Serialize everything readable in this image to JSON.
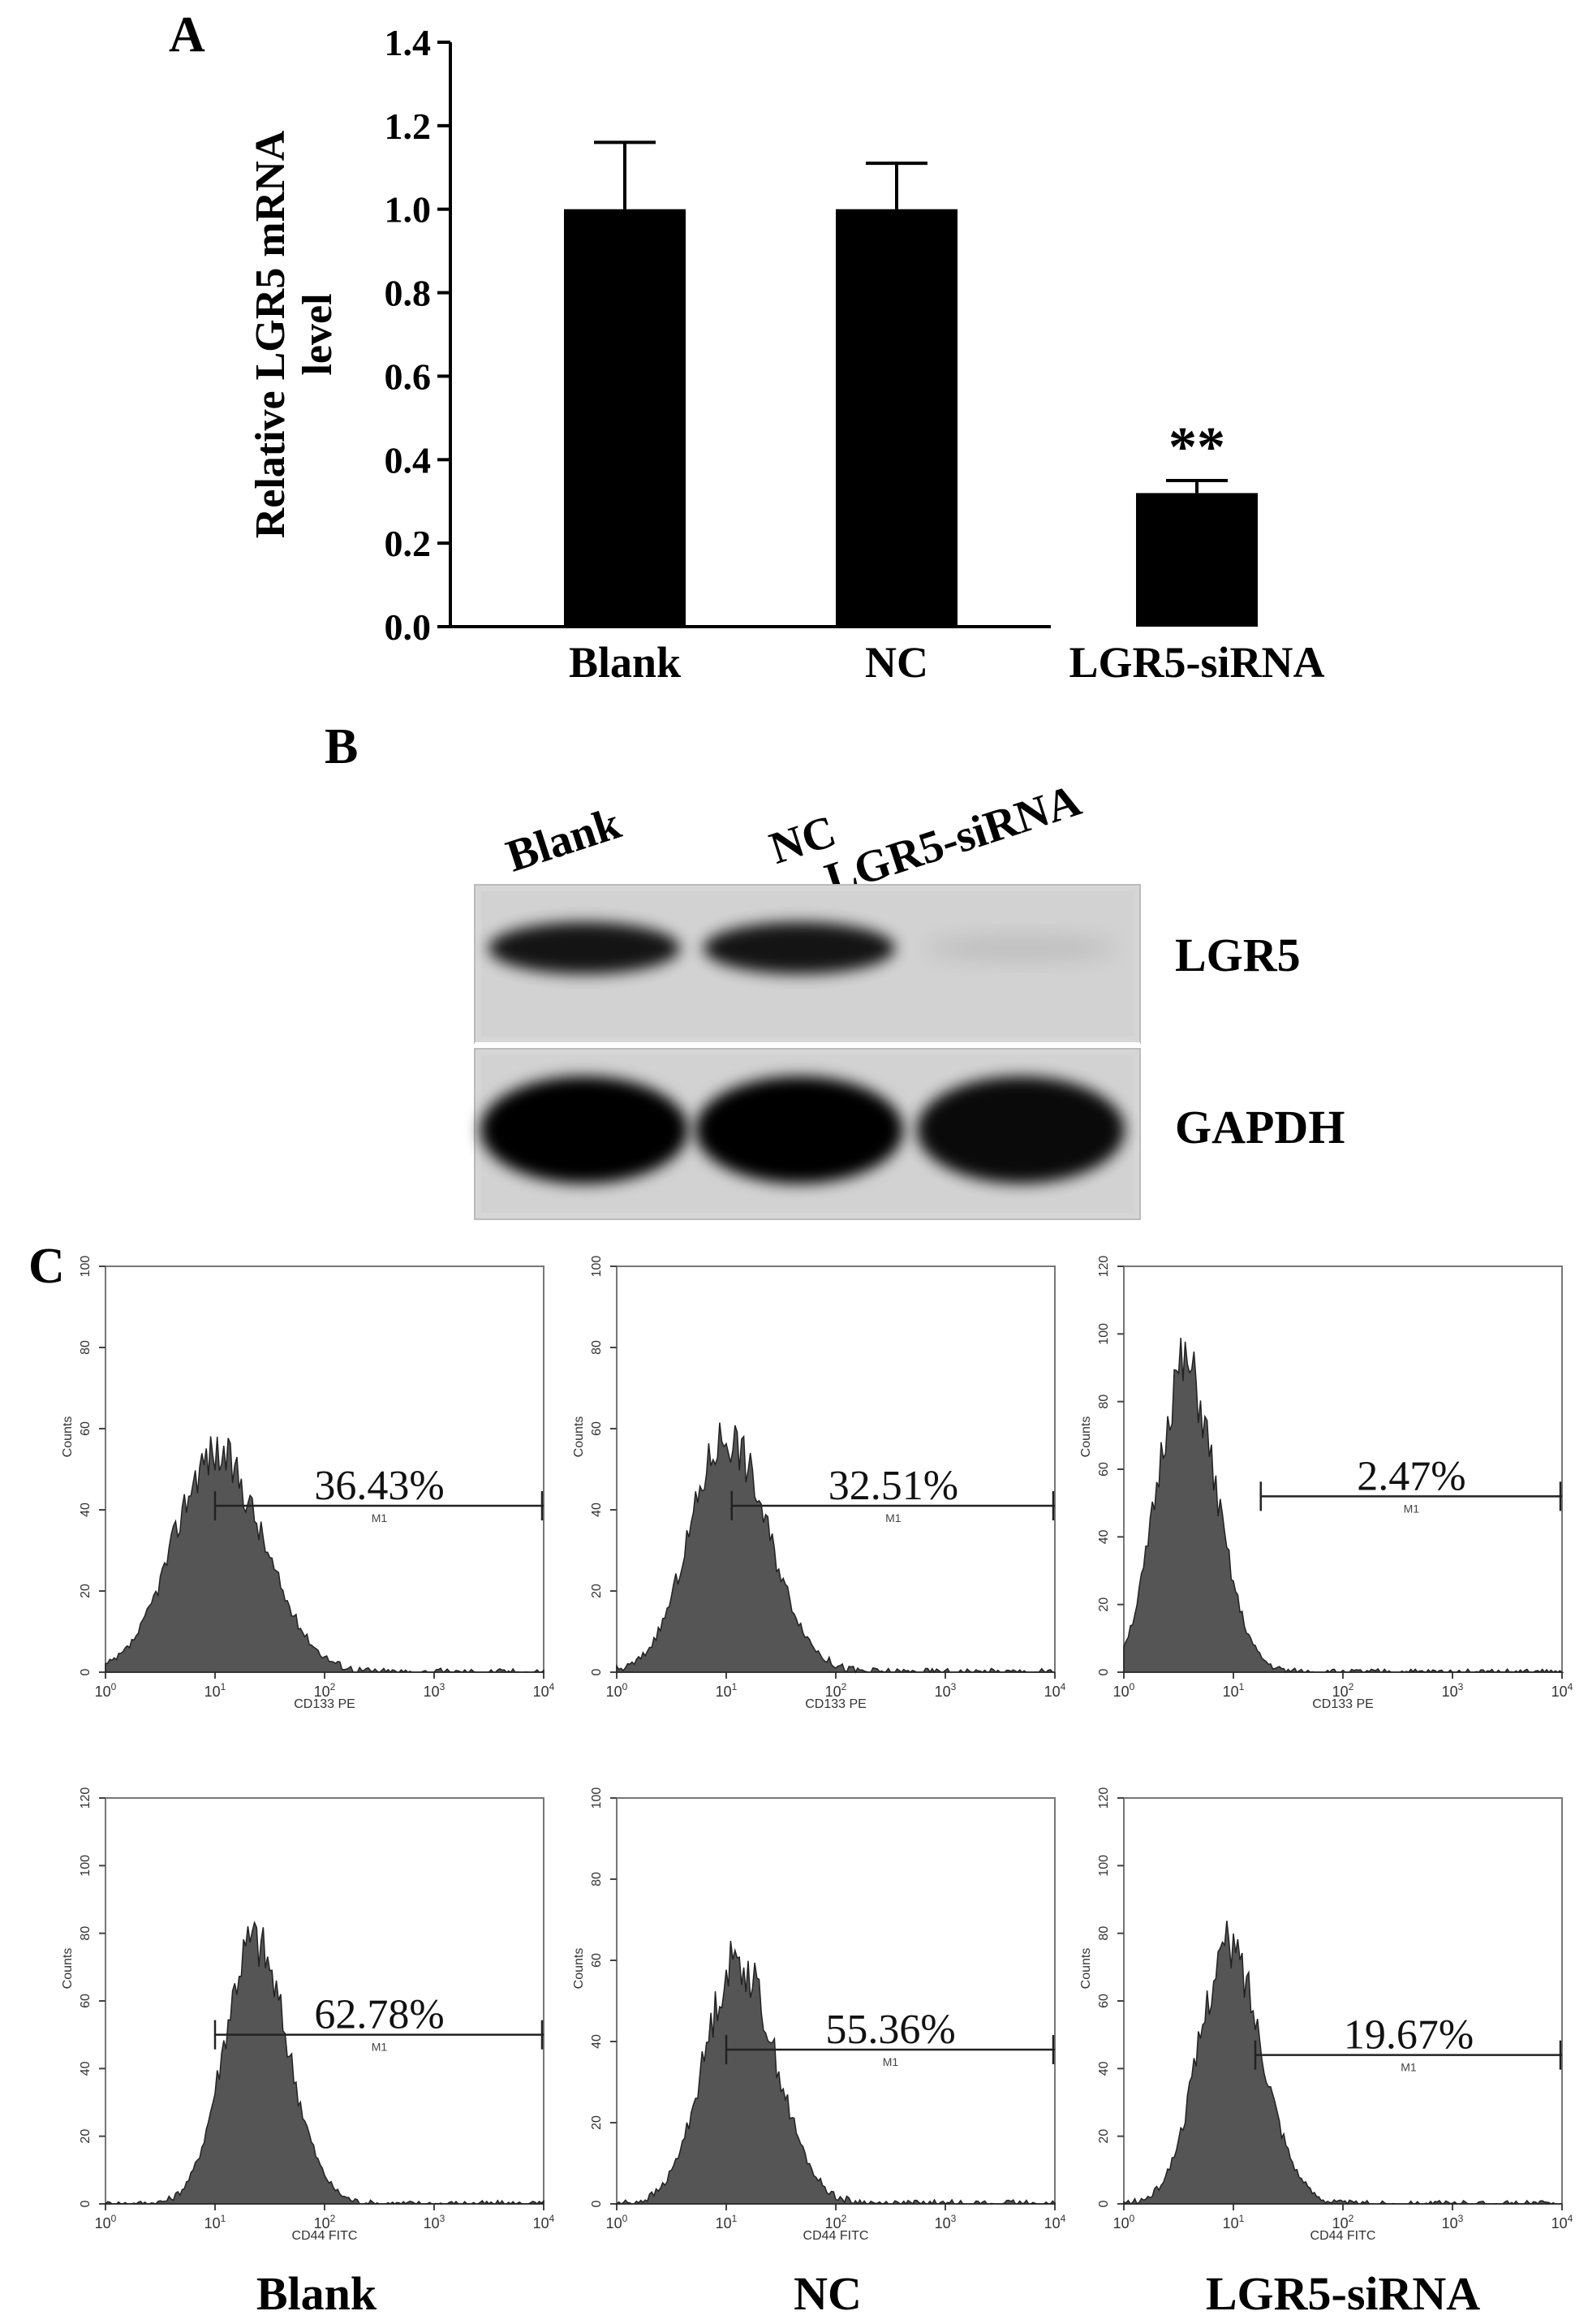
{
  "panels": {
    "a": "A",
    "b": "B",
    "c": "C"
  },
  "chart_data": {
    "type": "bar",
    "title": "",
    "ylabel": "Relative LGR5 mRNA level",
    "ylabel_lines": [
      "Relative LGR5 mRNA",
      "level"
    ],
    "xlabel": "",
    "categories": [
      "Blank",
      "NC",
      "LGR5-siRNA"
    ],
    "values": [
      1.0,
      1.0,
      0.32
    ],
    "errors": [
      0.16,
      0.11,
      0.03
    ],
    "ylim": [
      0.0,
      1.4
    ],
    "yticks": [
      "0.0",
      "0.2",
      "0.4",
      "0.6",
      "0.8",
      "1.0",
      "1.2",
      "1.4"
    ],
    "annotations": [
      {
        "category": "LGR5-siRNA",
        "text": "**"
      }
    ],
    "bar_color": "#000000"
  },
  "western_blot": {
    "lanes": [
      "Blank",
      "NC",
      "LGR5-siRNA"
    ],
    "bands": [
      {
        "label": "LGR5",
        "intensities": [
          0.9,
          0.9,
          0.1
        ]
      },
      {
        "label": "GAPDH",
        "intensities": [
          1.0,
          1.0,
          0.95
        ]
      }
    ]
  },
  "flow": {
    "ylabel": "Counts",
    "group_labels": [
      "Blank",
      "NC",
      "LGR5-siRNA"
    ],
    "gate_label": "M1",
    "rows": [
      {
        "xlabel": "CD133 PE",
        "panels": [
          {
            "percent": "36.43%",
            "ymax": 100,
            "yticks": [
              "0",
              "20",
              "40",
              "60",
              "80",
              "100"
            ],
            "peak_log": 1.0,
            "width_log": 0.38,
            "height": 54,
            "gate_start_log": 1.0,
            "gate_level": 41
          },
          {
            "percent": "32.51%",
            "ymax": 100,
            "yticks": [
              "0",
              "20",
              "40",
              "60",
              "80",
              "100"
            ],
            "peak_log": 1.0,
            "width_log": 0.33,
            "height": 58,
            "gate_start_log": 1.05,
            "gate_level": 41
          },
          {
            "percent": "2.47%",
            "ymax": 120,
            "yticks": [
              "0",
              "20",
              "40",
              "60",
              "80",
              "100",
              "120"
            ],
            "peak_log": 0.55,
            "width_log": 0.25,
            "height": 90,
            "gate_start_log": 1.25,
            "gate_level": 52
          }
        ]
      },
      {
        "xlabel": "CD44 FITC",
        "panels": [
          {
            "percent": "62.78%",
            "ymax": 120,
            "yticks": [
              "0",
              "20",
              "40",
              "60",
              "80",
              "100",
              "120"
            ],
            "peak_log": 1.35,
            "width_log": 0.27,
            "height": 78,
            "gate_start_log": 1.0,
            "gate_level": 50
          },
          {
            "percent": "55.36%",
            "ymax": 100,
            "yticks": [
              "0",
              "20",
              "40",
              "60",
              "80",
              "100"
            ],
            "peak_log": 1.1,
            "width_log": 0.3,
            "height": 60,
            "gate_start_log": 1.0,
            "gate_level": 38
          },
          {
            "percent": "19.67%",
            "ymax": 120,
            "yticks": [
              "0",
              "20",
              "40",
              "60",
              "80",
              "100",
              "120"
            ],
            "peak_log": 0.95,
            "width_log": 0.27,
            "height": 76,
            "gate_start_log": 1.2,
            "gate_level": 44
          }
        ]
      }
    ],
    "xticks": [
      "10^0",
      "10^1",
      "10^2",
      "10^3",
      "10^4"
    ]
  }
}
